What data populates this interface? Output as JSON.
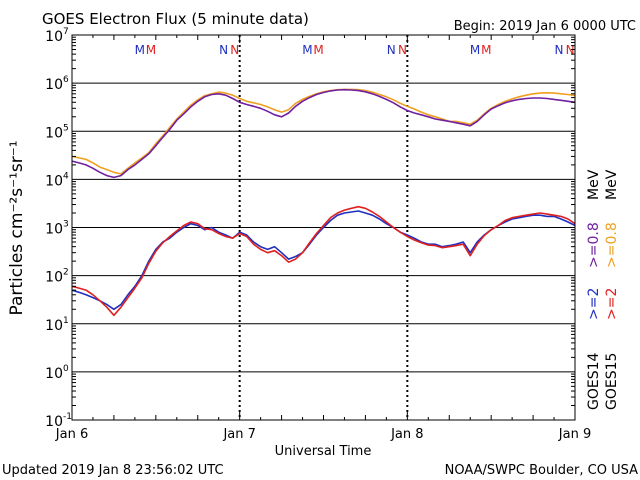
{
  "header": {
    "title": "GOES Electron Flux (5 minute data)",
    "begin": "Begin: 2019 Jan 6 0000 UTC"
  },
  "footer": {
    "updated": "Updated 2019 Jan  8 23:56:02 UTC",
    "credit": "NOAA/SWPC Boulder, CO USA"
  },
  "chart_data": {
    "type": "line",
    "title": "GOES Electron Flux (5 minute data)",
    "xlabel": "Universal Time",
    "ylabel": "Particles cm⁻²s⁻¹sr⁻¹",
    "yscale": "log",
    "ylim": [
      0.1,
      10000000
    ],
    "xlim": [
      0,
      72
    ],
    "x_unit": "hours since 2019 Jan 6 0000 UTC",
    "xticks": [
      {
        "x": 0,
        "label": "Jan 6"
      },
      {
        "x": 24,
        "label": "Jan 7"
      },
      {
        "x": 48,
        "label": "Jan 8"
      },
      {
        "x": 72,
        "label": "Jan 9"
      }
    ],
    "yticks": [
      {
        "exp": -1,
        "label": "10",
        "sup": "-1"
      },
      {
        "exp": 0,
        "label": "10",
        "sup": "0"
      },
      {
        "exp": 1,
        "label": "10",
        "sup": "1"
      },
      {
        "exp": 2,
        "label": "10",
        "sup": "2"
      },
      {
        "exp": 3,
        "label": "10",
        "sup": "3"
      },
      {
        "exp": 4,
        "label": "10",
        "sup": "4"
      },
      {
        "exp": 5,
        "label": "10",
        "sup": "5"
      },
      {
        "exp": 6,
        "label": "10",
        "sup": "6"
      },
      {
        "exp": 7,
        "label": "10",
        "sup": "7"
      }
    ],
    "threshold": 1000,
    "markers": [
      {
        "x": 9.7,
        "text": "M",
        "color": "#2030c0"
      },
      {
        "x": 11.3,
        "text": "M",
        "color": "#e02020"
      },
      {
        "x": 21.7,
        "text": "N",
        "color": "#2030c0"
      },
      {
        "x": 23.3,
        "text": "N",
        "color": "#e02020"
      },
      {
        "x": 33.7,
        "text": "M",
        "color": "#2030c0"
      },
      {
        "x": 35.3,
        "text": "M",
        "color": "#e02020"
      },
      {
        "x": 45.7,
        "text": "N",
        "color": "#2030c0"
      },
      {
        "x": 47.3,
        "text": "N",
        "color": "#e02020"
      },
      {
        "x": 57.7,
        "text": "M",
        "color": "#2030c0"
      },
      {
        "x": 59.3,
        "text": "M",
        "color": "#e02020"
      },
      {
        "x": 69.7,
        "text": "N",
        "color": "#2030c0"
      },
      {
        "x": 71.3,
        "text": "N",
        "color": "#e02020"
      }
    ],
    "legend": [
      {
        "label": "GOES15",
        "color": "#000000"
      },
      {
        "label": "GOES14",
        "color": "#000000"
      },
      {
        "label": ">=2",
        "color": "#e02020"
      },
      {
        "label": ">=2",
        "color": "#2030c0"
      },
      {
        "label": ">=0.8",
        "color": "#f0a020"
      },
      {
        "label": ">=0.8",
        "color": "#7020a0"
      },
      {
        "label": "MeV",
        "color": "#000000"
      },
      {
        "label": "MeV",
        "color": "#000000"
      }
    ],
    "series": [
      {
        "name": "GOES15 >=0.8 MeV",
        "color": "#f0a020",
        "x": [
          0,
          1,
          2,
          3,
          4,
          5,
          6,
          7,
          8,
          9,
          10,
          11,
          12,
          13,
          14,
          15,
          16,
          17,
          18,
          19,
          20,
          21,
          22,
          23,
          24,
          25,
          26,
          27,
          28,
          29,
          30,
          31,
          32,
          33,
          34,
          35,
          36,
          37,
          38,
          39,
          40,
          41,
          42,
          43,
          44,
          45,
          46,
          47,
          48,
          49,
          50,
          51,
          52,
          53,
          54,
          55,
          56,
          57,
          58,
          59,
          60,
          61,
          62,
          63,
          64,
          65,
          66,
          67,
          68,
          69,
          70,
          71,
          72
        ],
        "values": [
          30000,
          28000,
          26000,
          22000,
          18000,
          16000,
          14000,
          13000,
          17000,
          22000,
          28000,
          36000,
          55000,
          80000,
          120000,
          180000,
          250000,
          350000,
          450000,
          550000,
          600000,
          650000,
          620000,
          560000,
          480000,
          420000,
          390000,
          360000,
          320000,
          280000,
          250000,
          280000,
          380000,
          460000,
          530000,
          600000,
          660000,
          700000,
          730000,
          740000,
          740000,
          730000,
          700000,
          650000,
          580000,
          520000,
          450000,
          380000,
          330000,
          290000,
          250000,
          220000,
          200000,
          180000,
          160000,
          160000,
          150000,
          140000,
          170000,
          230000,
          300000,
          360000,
          420000,
          470000,
          520000,
          560000,
          600000,
          620000,
          630000,
          620000,
          600000,
          580000,
          550000
        ]
      },
      {
        "name": "GOES14 >=0.8 MeV",
        "color": "#7020a0",
        "x": [
          0,
          1,
          2,
          3,
          4,
          5,
          6,
          7,
          8,
          9,
          10,
          11,
          12,
          13,
          14,
          15,
          16,
          17,
          18,
          19,
          20,
          21,
          22,
          23,
          24,
          25,
          26,
          27,
          28,
          29,
          30,
          31,
          32,
          33,
          34,
          35,
          36,
          37,
          38,
          39,
          40,
          41,
          42,
          43,
          44,
          45,
          46,
          47,
          48,
          49,
          50,
          51,
          52,
          53,
          54,
          55,
          56,
          57,
          58,
          59,
          60,
          61,
          62,
          63,
          64,
          65,
          66,
          67,
          68,
          69,
          70,
          71,
          72
        ],
        "values": [
          24000,
          22000,
          20000,
          17000,
          14000,
          12000,
          11000,
          12000,
          16000,
          20000,
          26000,
          34000,
          50000,
          75000,
          110000,
          170000,
          230000,
          320000,
          420000,
          520000,
          580000,
          600000,
          560000,
          480000,
          400000,
          360000,
          330000,
          300000,
          260000,
          220000,
          200000,
          240000,
          330000,
          420000,
          500000,
          580000,
          640000,
          690000,
          720000,
          730000,
          720000,
          700000,
          660000,
          600000,
          530000,
          460000,
          390000,
          320000,
          270000,
          240000,
          220000,
          200000,
          180000,
          170000,
          160000,
          150000,
          140000,
          130000,
          160000,
          220000,
          290000,
          340000,
          390000,
          430000,
          460000,
          480000,
          490000,
          490000,
          480000,
          460000,
          440000,
          420000,
          400000
        ]
      },
      {
        "name": "GOES14 >=2 MeV",
        "color": "#2030c0",
        "x": [
          0,
          1,
          2,
          3,
          4,
          5,
          6,
          7,
          8,
          9,
          10,
          11,
          12,
          13,
          14,
          15,
          16,
          17,
          18,
          19,
          20,
          21,
          22,
          23,
          24,
          25,
          26,
          27,
          28,
          29,
          30,
          31,
          32,
          33,
          34,
          35,
          36,
          37,
          38,
          39,
          40,
          41,
          42,
          43,
          44,
          45,
          46,
          47,
          48,
          49,
          50,
          51,
          52,
          53,
          54,
          55,
          56,
          57,
          58,
          59,
          60,
          61,
          62,
          63,
          64,
          65,
          66,
          67,
          68,
          69,
          70,
          71,
          72
        ],
        "values": [
          50,
          45,
          40,
          35,
          30,
          25,
          20,
          25,
          40,
          60,
          100,
          200,
          350,
          500,
          600,
          800,
          1000,
          1200,
          1100,
          900,
          1000,
          800,
          700,
          600,
          800,
          700,
          500,
          400,
          350,
          400,
          300,
          220,
          250,
          300,
          450,
          700,
          1000,
          1400,
          1800,
          2000,
          2100,
          2200,
          2000,
          1800,
          1500,
          1200,
          1000,
          800,
          700,
          600,
          500,
          450,
          450,
          400,
          420,
          450,
          500,
          300,
          500,
          700,
          900,
          1100,
          1300,
          1500,
          1600,
          1700,
          1800,
          1800,
          1700,
          1700,
          1500,
          1300,
          1100
        ]
      },
      {
        "name": "GOES15 >=2 MeV",
        "color": "#e02020",
        "x": [
          0,
          1,
          2,
          3,
          4,
          5,
          6,
          7,
          8,
          9,
          10,
          11,
          12,
          13,
          14,
          15,
          16,
          17,
          18,
          19,
          20,
          21,
          22,
          23,
          24,
          25,
          26,
          27,
          28,
          29,
          30,
          31,
          32,
          33,
          34,
          35,
          36,
          37,
          38,
          39,
          40,
          41,
          42,
          43,
          44,
          45,
          46,
          47,
          48,
          49,
          50,
          51,
          52,
          53,
          54,
          55,
          56,
          57,
          58,
          59,
          60,
          61,
          62,
          63,
          64,
          65,
          66,
          67,
          68,
          69,
          70,
          71,
          72
        ],
        "values": [
          60,
          55,
          50,
          40,
          30,
          22,
          15,
          22,
          35,
          55,
          90,
          180,
          320,
          480,
          650,
          850,
          1100,
          1300,
          1200,
          950,
          900,
          750,
          650,
          600,
          750,
          650,
          450,
          350,
          300,
          330,
          260,
          190,
          220,
          300,
          480,
          750,
          1100,
          1600,
          2000,
          2300,
          2500,
          2700,
          2500,
          2100,
          1700,
          1300,
          1000,
          800,
          650,
          550,
          480,
          430,
          420,
          380,
          400,
          420,
          450,
          260,
          450,
          680,
          900,
          1100,
          1400,
          1600,
          1700,
          1800,
          1900,
          2000,
          1900,
          1800,
          1700,
          1500,
          1200
        ]
      }
    ]
  }
}
